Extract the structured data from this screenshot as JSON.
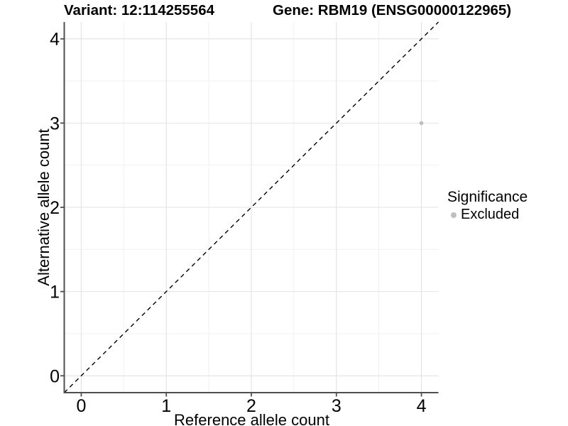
{
  "chart_data": {
    "type": "scatter",
    "titles": {
      "variant": "Variant: 12:114255564",
      "gene": "Gene: RBM19 (ENSG00000122965)"
    },
    "xlabel": "Reference allele count",
    "ylabel": "Alternative allele count",
    "xlim": [
      -0.2,
      4.2
    ],
    "ylim": [
      -0.2,
      4.2
    ],
    "x_ticks": [
      0,
      1,
      2,
      3,
      4
    ],
    "y_ticks": [
      0,
      1,
      2,
      3,
      4
    ],
    "x_minor": [
      0.5,
      1.5,
      2.5,
      3.5
    ],
    "y_minor": [
      0.5,
      1.5,
      2.5,
      3.5
    ],
    "grid": "major+minor",
    "reference_line": {
      "type": "identity y=x",
      "style": "dashed",
      "color": "#000000"
    },
    "points": [
      {
        "x": 4,
        "y": 3,
        "significance": "Excluded"
      }
    ],
    "legend": {
      "title": "Significance",
      "position": "right",
      "items": [
        {
          "label": "Excluded",
          "color": "#bebebe"
        }
      ]
    },
    "colors": {
      "background": "#ffffff",
      "point": "#bebebe",
      "grid_major": "#e2e2e2",
      "grid_minor": "#efefef",
      "axis_line": "#4f4f4f",
      "tick_mark": "#4f4f4f",
      "text": "#000000"
    }
  }
}
